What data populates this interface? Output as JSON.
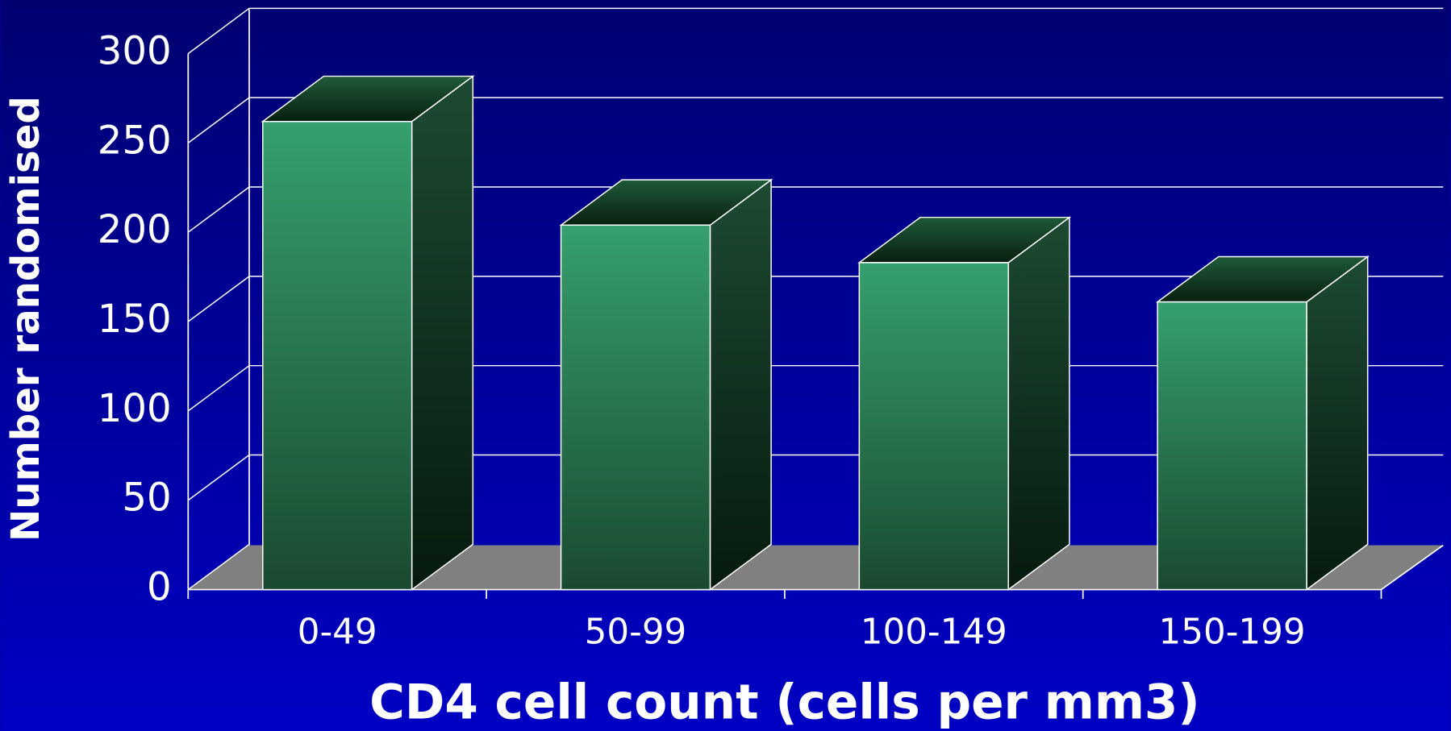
{
  "chart_data": {
    "type": "bar3d",
    "x_label": "CD4 cell count (cells per mm3)",
    "y_label": "Number randomised",
    "categories": [
      "0-49",
      "50-99",
      "100-149",
      "150-199"
    ],
    "values": [
      262,
      204,
      183,
      161
    ],
    "color": "#33996a",
    "ylim": [
      0,
      300
    ],
    "yticks": [
      0,
      50,
      100,
      150,
      200,
      250,
      300
    ],
    "grid": true
  }
}
